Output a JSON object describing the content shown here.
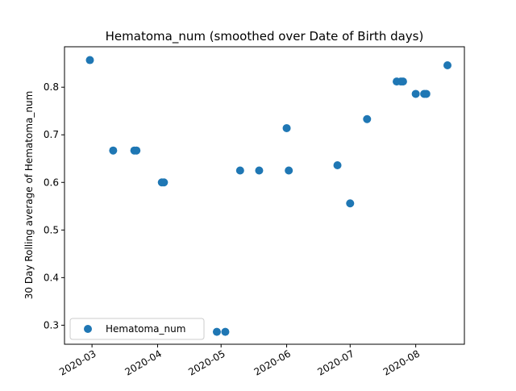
{
  "chart_data": {
    "type": "scatter",
    "title": "Hematoma_num (smoothed over Date of Birth days)",
    "xlabel": "",
    "ylabel": "30 Day Rolling average of Hematoma_num",
    "x_axis_type": "date",
    "xlim": [
      "2020-02-17",
      "2020-08-24"
    ],
    "ylim": [
      0.26,
      0.885
    ],
    "x_ticks": [
      {
        "value": "2020-03-01",
        "label": "2020-03"
      },
      {
        "value": "2020-04-01",
        "label": "2020-04"
      },
      {
        "value": "2020-05-01",
        "label": "2020-05"
      },
      {
        "value": "2020-06-01",
        "label": "2020-06"
      },
      {
        "value": "2020-07-01",
        "label": "2020-07"
      },
      {
        "value": "2020-08-01",
        "label": "2020-08"
      }
    ],
    "y_ticks": [
      {
        "value": 0.3,
        "label": "0.3"
      },
      {
        "value": 0.4,
        "label": "0.4"
      },
      {
        "value": 0.5,
        "label": "0.5"
      },
      {
        "value": 0.6,
        "label": "0.6"
      },
      {
        "value": 0.7,
        "label": "0.7"
      },
      {
        "value": 0.8,
        "label": "0.8"
      }
    ],
    "grid": false,
    "legend": {
      "position": "lower-left",
      "entries": [
        "Hematoma_num"
      ]
    },
    "series": [
      {
        "name": "Hematoma_num",
        "color": "#1f77b4",
        "marker": "circle",
        "points": [
          {
            "x": "2020-02-29",
            "y": 0.857
          },
          {
            "x": "2020-03-11",
            "y": 0.667
          },
          {
            "x": "2020-03-21",
            "y": 0.667
          },
          {
            "x": "2020-03-22",
            "y": 0.667
          },
          {
            "x": "2020-04-03",
            "y": 0.6
          },
          {
            "x": "2020-04-04",
            "y": 0.6
          },
          {
            "x": "2020-04-29",
            "y": 0.286
          },
          {
            "x": "2020-05-03",
            "y": 0.286
          },
          {
            "x": "2020-05-10",
            "y": 0.625
          },
          {
            "x": "2020-05-19",
            "y": 0.625
          },
          {
            "x": "2020-06-01",
            "y": 0.714
          },
          {
            "x": "2020-06-02",
            "y": 0.625
          },
          {
            "x": "2020-06-25",
            "y": 0.636
          },
          {
            "x": "2020-07-01",
            "y": 0.556
          },
          {
            "x": "2020-07-09",
            "y": 0.733
          },
          {
            "x": "2020-07-23",
            "y": 0.812
          },
          {
            "x": "2020-07-25",
            "y": 0.812
          },
          {
            "x": "2020-07-26",
            "y": 0.812
          },
          {
            "x": "2020-08-01",
            "y": 0.786
          },
          {
            "x": "2020-08-05",
            "y": 0.786
          },
          {
            "x": "2020-08-06",
            "y": 0.786
          },
          {
            "x": "2020-08-16",
            "y": 0.846
          }
        ]
      }
    ]
  }
}
